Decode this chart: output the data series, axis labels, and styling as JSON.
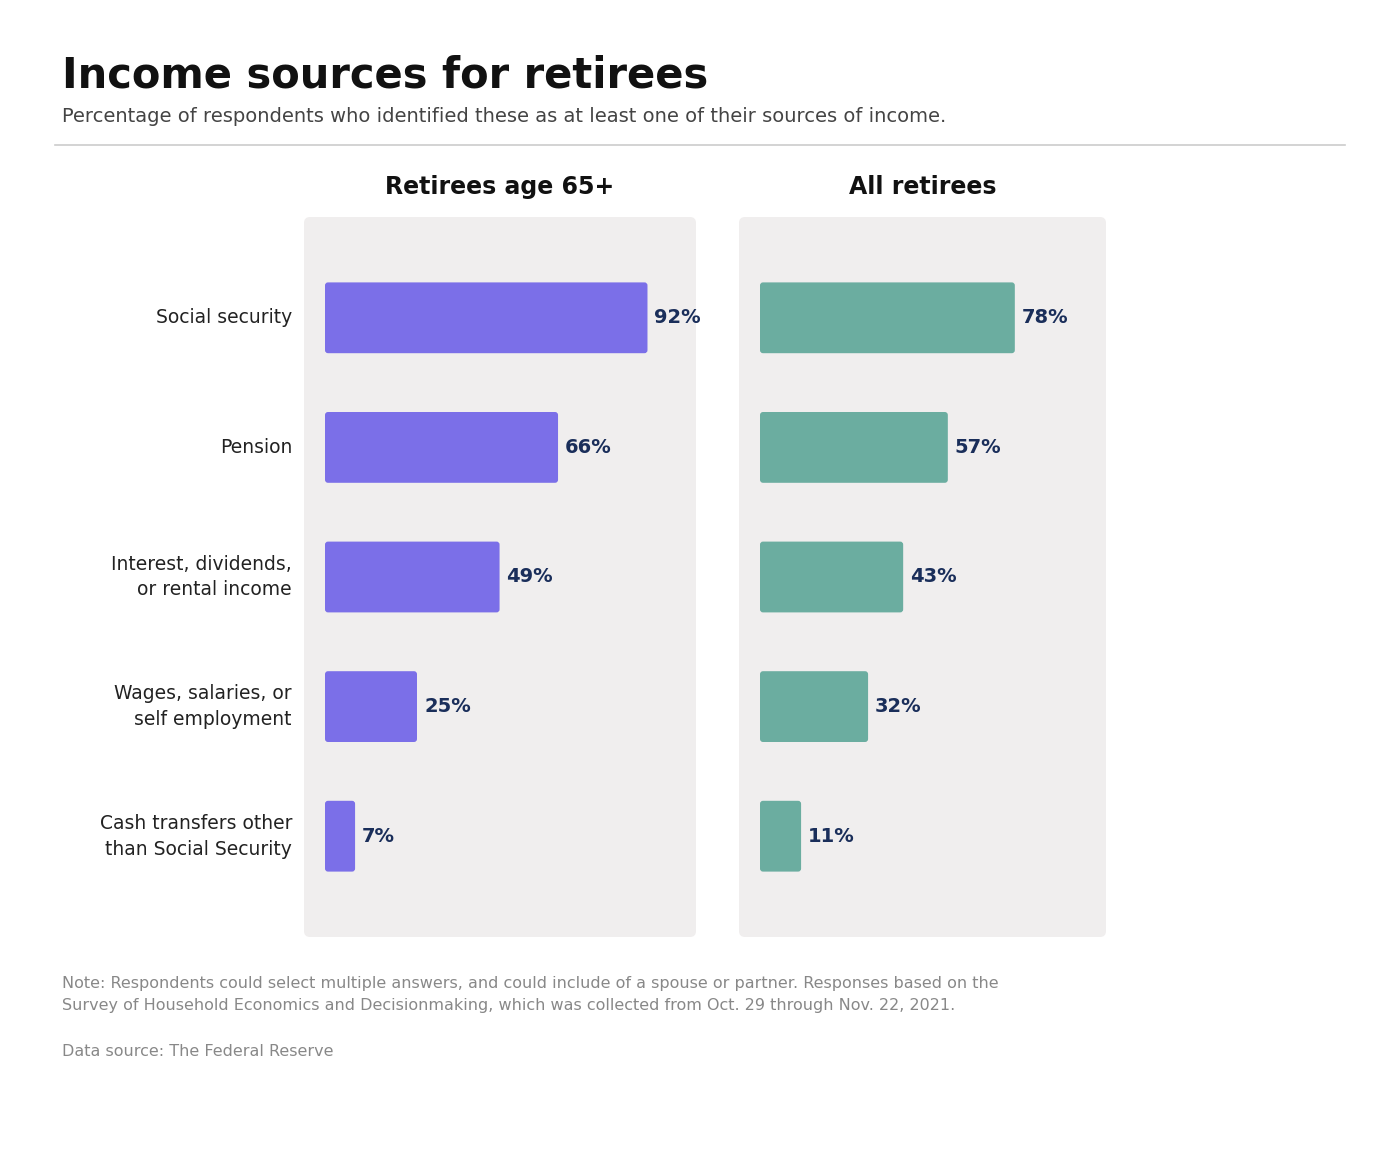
{
  "title": "Income sources for retirees",
  "subtitle": "Percentage of respondents who identified these as at least one of their sources of income.",
  "categories": [
    "Social security",
    "Pension",
    "Interest, dividends,\nor rental income",
    "Wages, salaries, or\nself employment",
    "Cash transfers other\nthan Social Security"
  ],
  "col1_title": "Retirees age 65+",
  "col2_title": "All retirees",
  "col1_values": [
    92,
    66,
    49,
    25,
    7
  ],
  "col2_values": [
    78,
    57,
    43,
    32,
    11
  ],
  "col1_color": "#7B6FE8",
  "col2_color": "#6BADA0",
  "panel_bg": "#F0EEEE",
  "label_color": "#1a2e5a",
  "note": "Note: Respondents could select multiple answers, and could include of a spouse or partner. Responses based on the\nSurvey of Household Economics and Decisionmaking, which was collected from Oct. 29 through Nov. 22, 2021.",
  "source": "Data source: The Federal Reserve",
  "background_color": "#ffffff",
  "title_fontsize": 30,
  "subtitle_fontsize": 14,
  "category_fontsize": 13.5,
  "bar_label_fontsize": 14,
  "col_title_fontsize": 17,
  "note_fontsize": 11.5,
  "source_fontsize": 11.5
}
